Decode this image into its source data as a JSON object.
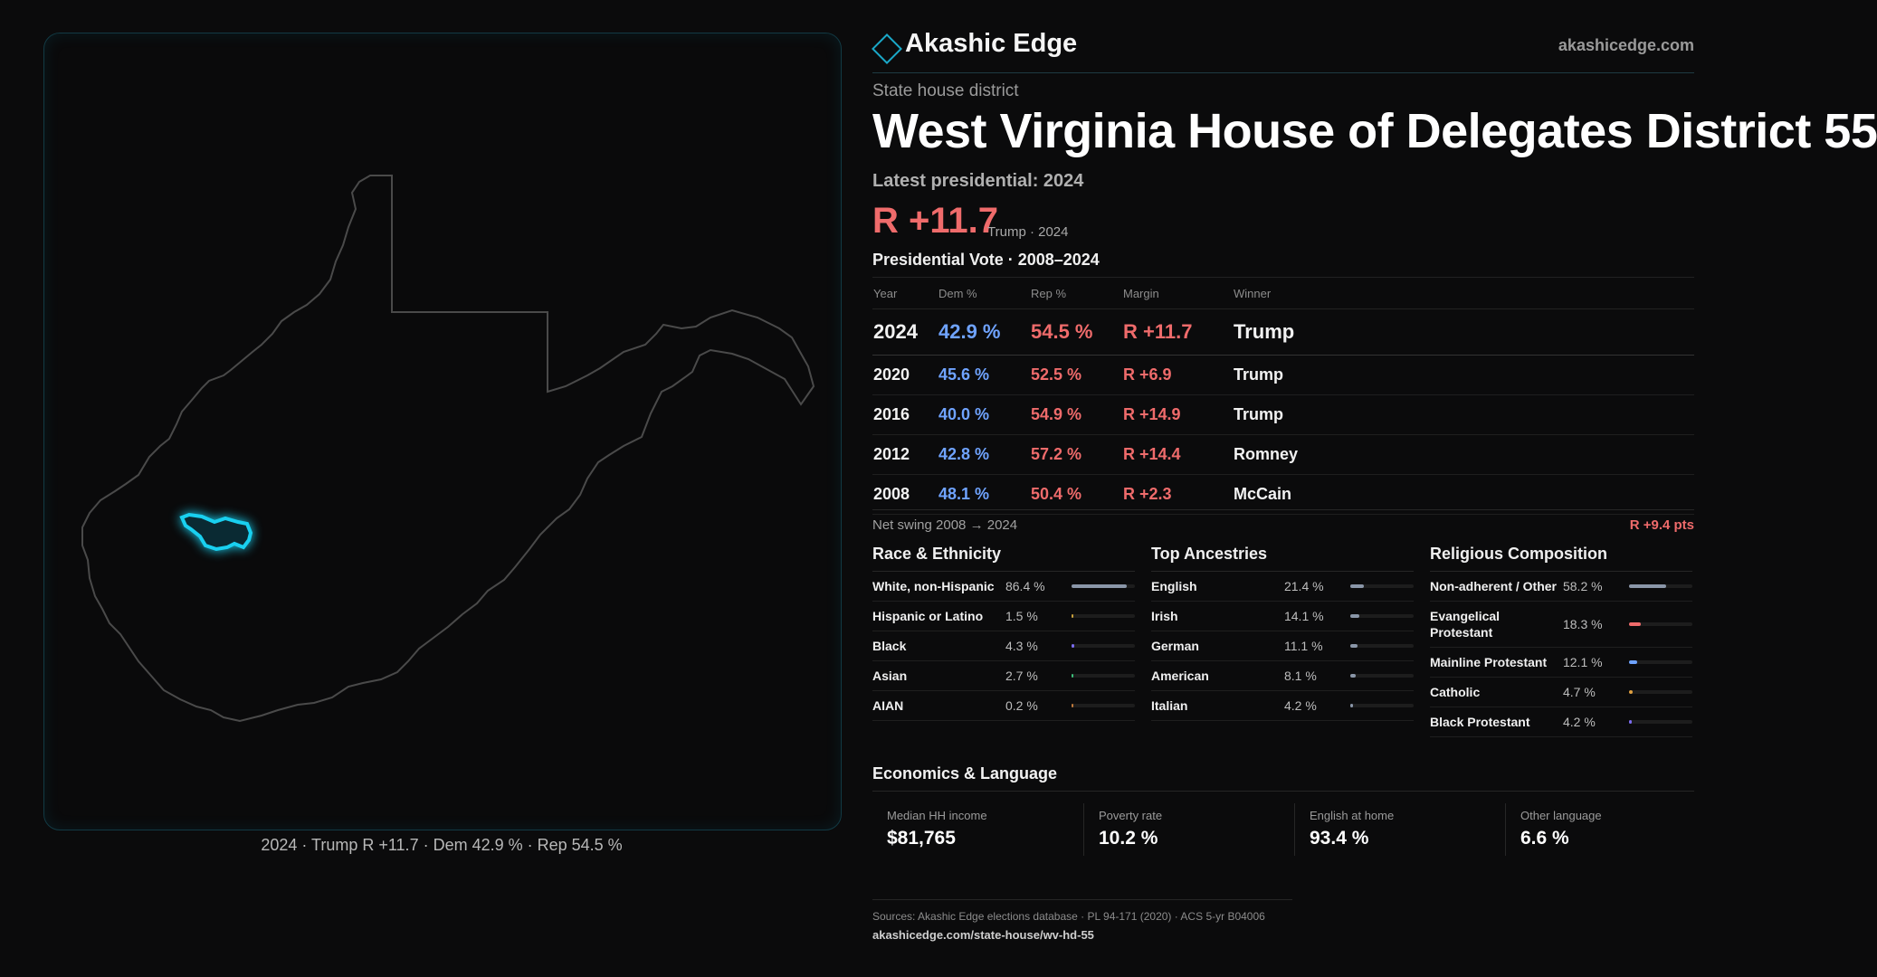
{
  "map": {
    "caption": "2024 · Trump R +11.7 · Dem 42.9 % · Rep 54.5 %"
  },
  "brand": {
    "name": "Akashic Edge",
    "url": "akashicedge.com",
    "logo_icon": "diamond-icon",
    "accent": "#1aa8c8"
  },
  "header": {
    "kind": "State house district",
    "title": "West Virginia House of Delegates District 55",
    "latest": "Latest presidential: 2024",
    "margin": "R +11.7",
    "margin_sub": "Trump · 2024"
  },
  "presidential": {
    "title": "Presidential Vote · 2008–2024",
    "columns": [
      "Year",
      "Dem %",
      "Rep %",
      "Margin",
      "Winner"
    ],
    "rows": [
      {
        "year": "2024",
        "dem": "42.9 %",
        "rep": "54.5 %",
        "margin": "R +11.7",
        "winner": "Trump"
      },
      {
        "year": "2020",
        "dem": "45.6 %",
        "rep": "52.5 %",
        "margin": "R +6.9",
        "winner": "Trump"
      },
      {
        "year": "2016",
        "dem": "40.0 %",
        "rep": "54.9 %",
        "margin": "R +14.9",
        "winner": "Trump"
      },
      {
        "year": "2012",
        "dem": "42.8 %",
        "rep": "57.2 %",
        "margin": "R +14.4",
        "winner": "Romney"
      },
      {
        "year": "2008",
        "dem": "48.1 %",
        "rep": "50.4 %",
        "margin": "R +2.3",
        "winner": "McCain"
      }
    ],
    "swing_label": "Net swing 2008 → 2024",
    "swing_value": "R +9.4 pts"
  },
  "race": {
    "title": "Race & Ethnicity",
    "items": [
      {
        "label": "White, non-Hispanic",
        "pct": "86.4 %",
        "value": 86.4,
        "color": "#8a96a8"
      },
      {
        "label": "Hispanic or Latino",
        "pct": "1.5 %",
        "value": 1.5,
        "color": "#c9a13b"
      },
      {
        "label": "Black",
        "pct": "4.3 %",
        "value": 4.3,
        "color": "#7b6cf0"
      },
      {
        "label": "Asian",
        "pct": "2.7 %",
        "value": 2.7,
        "color": "#3cc07a"
      },
      {
        "label": "AIAN",
        "pct": "0.2 %",
        "value": 0.2,
        "color": "#c07a3c"
      }
    ]
  },
  "ancestry": {
    "title": "Top Ancestries",
    "items": [
      {
        "label": "English",
        "pct": "21.4 %",
        "value": 21.4,
        "color": "#8a96a8"
      },
      {
        "label": "Irish",
        "pct": "14.1 %",
        "value": 14.1,
        "color": "#8a96a8"
      },
      {
        "label": "German",
        "pct": "11.1 %",
        "value": 11.1,
        "color": "#8a96a8"
      },
      {
        "label": "American",
        "pct": "8.1 %",
        "value": 8.1,
        "color": "#8a96a8"
      },
      {
        "label": "Italian",
        "pct": "4.2 %",
        "value": 4.2,
        "color": "#8a96a8"
      }
    ]
  },
  "religion": {
    "title": "Religious Composition",
    "items": [
      {
        "label": "Non-adherent / Other",
        "pct": "58.2 %",
        "value": 58.2,
        "color": "#8a96a8"
      },
      {
        "label": "Evangelical Protestant",
        "pct": "18.3 %",
        "value": 18.3,
        "color": "#ef6b6b"
      },
      {
        "label": "Mainline Protestant",
        "pct": "12.1 %",
        "value": 12.1,
        "color": "#6fa3ff"
      },
      {
        "label": "Catholic",
        "pct": "4.7 %",
        "value": 4.7,
        "color": "#e0a040"
      },
      {
        "label": "Black Protestant",
        "pct": "4.2 %",
        "value": 4.2,
        "color": "#7b6cf0"
      }
    ]
  },
  "economics": {
    "title": "Economics & Language",
    "items": [
      {
        "label": "Median HH income",
        "value": "$81,765"
      },
      {
        "label": "Poverty rate",
        "value": "10.2 %"
      },
      {
        "label": "English at home",
        "value": "93.4 %"
      },
      {
        "label": "Other language",
        "value": "6.6 %"
      }
    ]
  },
  "sources": {
    "text": "Sources: Akashic Edge elections database · PL 94-171 (2020) · ACS 5-yr B04006",
    "url": "akashicedge.com/state-house/wv-hd-55"
  }
}
